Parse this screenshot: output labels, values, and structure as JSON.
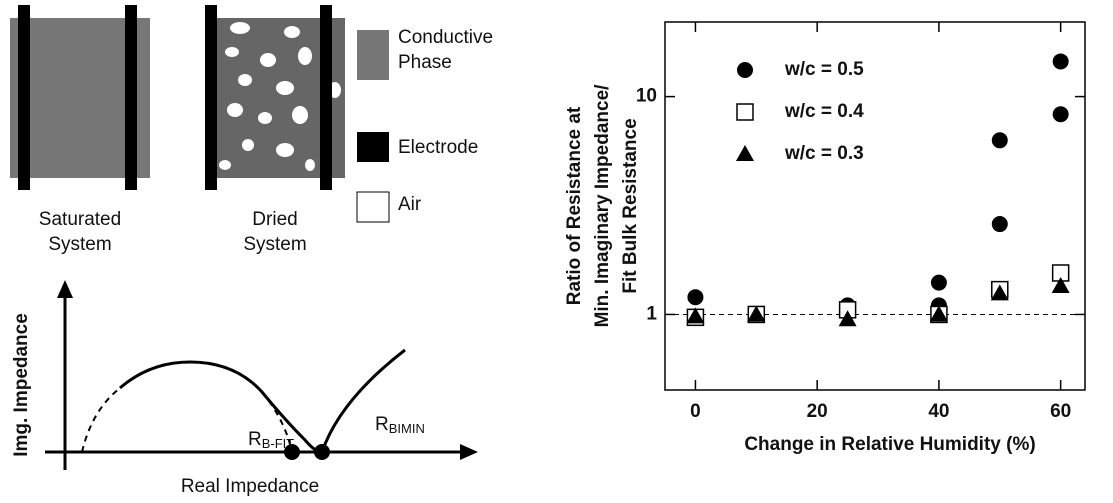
{
  "diagram": {
    "legend": {
      "conductive": [
        "Conductive",
        "Phase"
      ],
      "electrode": "Electrode",
      "air": "Air"
    },
    "systems": {
      "saturated": [
        "Saturated",
        "System"
      ],
      "dried": [
        "Dried",
        "System"
      ]
    },
    "plot": {
      "y_axis": "Img. Impedance",
      "x_axis": "Real Impedance",
      "r_fit": {
        "main": "R",
        "sub": "B-FIT"
      },
      "r_min": {
        "main": "R",
        "sub": "BIMIN"
      }
    }
  },
  "chart_data": {
    "type": "scatter",
    "ylabel": [
      "Ratio of Resistance at",
      "Min. Imaginary Impedance/",
      "Fit Bulk Resistance"
    ],
    "xlabel": "Change in Relative Humidity (%)",
    "xlim": [
      -5,
      64
    ],
    "xticks": [
      0,
      20,
      40,
      60
    ],
    "ylim": [
      0.45,
      22
    ],
    "yticks": [
      1,
      10
    ],
    "log_y": true,
    "reference_line": 1,
    "legend": "upper left",
    "series": [
      {
        "name": "w/c = 0.5",
        "marker": "circle",
        "color": "#000000",
        "x": [
          0,
          10,
          25,
          40,
          40,
          50,
          50,
          60,
          60
        ],
        "values": [
          1.2,
          1.0,
          1.1,
          1.4,
          1.1,
          6.3,
          2.6,
          14.5,
          8.3
        ]
      },
      {
        "name": "w/c = 0.4",
        "marker": "square",
        "color": "#000000",
        "x": [
          0,
          10,
          25,
          40,
          50,
          60
        ],
        "values": [
          0.97,
          1.0,
          1.05,
          1.0,
          1.3,
          1.55
        ]
      },
      {
        "name": "w/c = 0.3",
        "marker": "triangle",
        "color": "#000000",
        "x": [
          0,
          10,
          25,
          40,
          50,
          60
        ],
        "values": [
          0.98,
          1.0,
          0.95,
          1.0,
          1.25,
          1.35
        ]
      }
    ]
  }
}
